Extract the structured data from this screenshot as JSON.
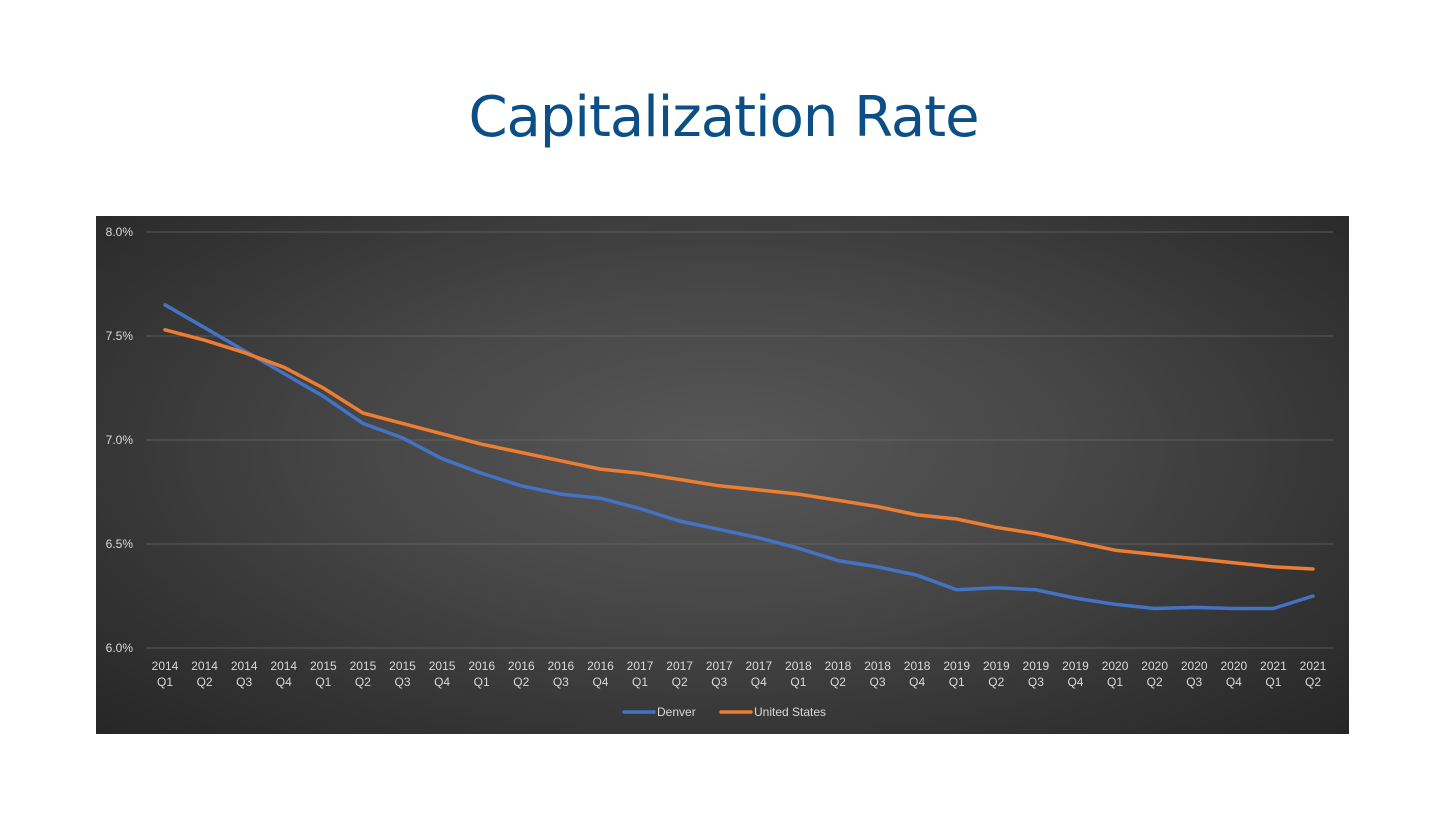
{
  "slide": {
    "title": "Capitalization Rate"
  },
  "chart_data": {
    "type": "line",
    "title": "",
    "xlabel": "",
    "ylabel": "",
    "ylim": [
      6.0,
      8.0
    ],
    "yticks": [
      {
        "value": 6.0,
        "label": "6.0%"
      },
      {
        "value": 6.5,
        "label": "6.5%"
      },
      {
        "value": 7.0,
        "label": "7.0%"
      },
      {
        "value": 7.5,
        "label": "7.5%"
      },
      {
        "value": 8.0,
        "label": "8.0%"
      }
    ],
    "categories": [
      {
        "year": "2014",
        "quarter": "Q1"
      },
      {
        "year": "2014",
        "quarter": "Q2"
      },
      {
        "year": "2014",
        "quarter": "Q3"
      },
      {
        "year": "2014",
        "quarter": "Q4"
      },
      {
        "year": "2015",
        "quarter": "Q1"
      },
      {
        "year": "2015",
        "quarter": "Q2"
      },
      {
        "year": "2015",
        "quarter": "Q3"
      },
      {
        "year": "2015",
        "quarter": "Q4"
      },
      {
        "year": "2016",
        "quarter": "Q1"
      },
      {
        "year": "2016",
        "quarter": "Q2"
      },
      {
        "year": "2016",
        "quarter": "Q3"
      },
      {
        "year": "2016",
        "quarter": "Q4"
      },
      {
        "year": "2017",
        "quarter": "Q1"
      },
      {
        "year": "2017",
        "quarter": "Q2"
      },
      {
        "year": "2017",
        "quarter": "Q3"
      },
      {
        "year": "2017",
        "quarter": "Q4"
      },
      {
        "year": "2018",
        "quarter": "Q1"
      },
      {
        "year": "2018",
        "quarter": "Q2"
      },
      {
        "year": "2018",
        "quarter": "Q3"
      },
      {
        "year": "2018",
        "quarter": "Q4"
      },
      {
        "year": "2019",
        "quarter": "Q1"
      },
      {
        "year": "2019",
        "quarter": "Q2"
      },
      {
        "year": "2019",
        "quarter": "Q3"
      },
      {
        "year": "2019",
        "quarter": "Q4"
      },
      {
        "year": "2020",
        "quarter": "Q1"
      },
      {
        "year": "2020",
        "quarter": "Q2"
      },
      {
        "year": "2020",
        "quarter": "Q3"
      },
      {
        "year": "2020",
        "quarter": "Q4"
      },
      {
        "year": "2021",
        "quarter": "Q1"
      },
      {
        "year": "2021",
        "quarter": "Q2"
      }
    ],
    "series": [
      {
        "name": "Denver",
        "color": "#4472c4",
        "values": [
          7.65,
          7.54,
          7.43,
          7.32,
          7.21,
          7.08,
          7.01,
          6.91,
          6.84,
          6.78,
          6.74,
          6.72,
          6.67,
          6.61,
          6.57,
          6.53,
          6.48,
          6.42,
          6.39,
          6.35,
          6.28,
          6.29,
          6.28,
          6.24,
          6.21,
          6.19,
          6.195,
          6.19,
          6.19,
          6.25
        ]
      },
      {
        "name": "United States",
        "color": "#ed7d31",
        "values": [
          7.53,
          7.48,
          7.42,
          7.35,
          7.25,
          7.13,
          7.08,
          7.03,
          6.98,
          6.94,
          6.9,
          6.86,
          6.84,
          6.81,
          6.78,
          6.76,
          6.74,
          6.71,
          6.68,
          6.64,
          6.62,
          6.58,
          6.55,
          6.51,
          6.47,
          6.45,
          6.43,
          6.41,
          6.39,
          6.38
        ]
      }
    ],
    "grid": true,
    "legend": "bottom-center"
  }
}
